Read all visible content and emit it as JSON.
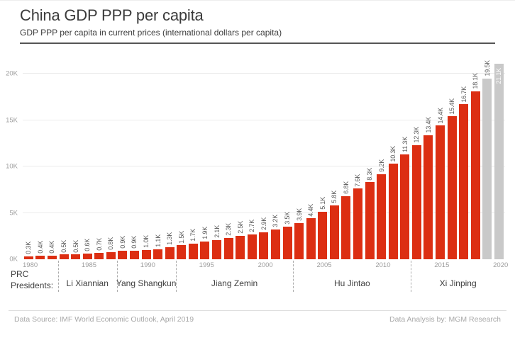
{
  "header": {
    "title": "China GDP PPP per capita",
    "subtitle": "GDP PPP per capita in current prices (international dollars per capita)"
  },
  "chart_data": {
    "type": "bar",
    "title": "China GDP PPP per capita",
    "subtitle": "GDP PPP per capita in current prices (international dollars per capita)",
    "xlabel": "",
    "ylabel": "",
    "grid": true,
    "ylim_thousands": [
      0,
      20
    ],
    "ytick_labels": [
      "0K",
      "5K",
      "10K",
      "15K",
      "20K"
    ],
    "year_start": 1980,
    "year_end": 2020,
    "xtick_years": [
      1980,
      1985,
      1990,
      1995,
      2000,
      2005,
      2010,
      2015,
      2020
    ],
    "values_thousands": [
      0.3,
      0.4,
      0.4,
      0.5,
      0.5,
      0.6,
      0.7,
      0.8,
      0.9,
      0.9,
      1.0,
      1.1,
      1.3,
      1.5,
      1.7,
      1.9,
      2.1,
      2.3,
      2.5,
      2.7,
      2.9,
      3.2,
      3.5,
      3.9,
      4.4,
      5.1,
      5.8,
      6.8,
      7.6,
      8.3,
      9.2,
      10.3,
      11.3,
      12.3,
      13.4,
      14.4,
      15.4,
      16.7,
      18.1,
      19.5,
      21.1
    ],
    "bar_labels": [
      "0.3K",
      "0.4K",
      "0.4K",
      "0.5K",
      "0.5K",
      "0.6K",
      "0.7K",
      "0.8K",
      "0.9K",
      "0.9K",
      "1.0K",
      "1.1K",
      "1.3K",
      "1.5K",
      "1.7K",
      "1.9K",
      "2.1K",
      "2.3K",
      "2.5K",
      "2.7K",
      "2.9K",
      "3.2K",
      "3.5K",
      "3.9K",
      "4.4K",
      "5.1K",
      "5.8K",
      "6.8K",
      "7.6K",
      "8.3K",
      "9.2K",
      "10.3K",
      "11.3K",
      "12.3K",
      "13.4K",
      "14.4K",
      "15.4K",
      "16.7K",
      "18.1K",
      "19.5K",
      "21.1K"
    ],
    "forecast_years": [
      2019,
      2020
    ],
    "label_inside_years": [
      2020
    ],
    "colors": {
      "bar_actual": "#dc2e12",
      "bar_forecast": "#c9c9c9",
      "bar_label": "#595959",
      "bar_label_inside": "#ffffff"
    },
    "legend": null
  },
  "presidents": {
    "label_line1": "PRC",
    "label_line2": "Presidents:",
    "eras": [
      {
        "name": "Li Xiannian",
        "start_year": 1983,
        "end_year": 1988
      },
      {
        "name": "Yang Shangkun",
        "start_year": 1988,
        "end_year": 1993
      },
      {
        "name": "Jiang Zemin",
        "start_year": 1993,
        "end_year": 2003
      },
      {
        "name": "Hu Jintao",
        "start_year": 2003,
        "end_year": 2013
      },
      {
        "name": "Xi Jinping",
        "start_year": 2013,
        "end_year": 2021
      }
    ]
  },
  "footer": {
    "data_source": "Data Source: IMF World Economic Outlook, April 2019",
    "data_analysis": "Data Analysis by: MGM Research"
  }
}
